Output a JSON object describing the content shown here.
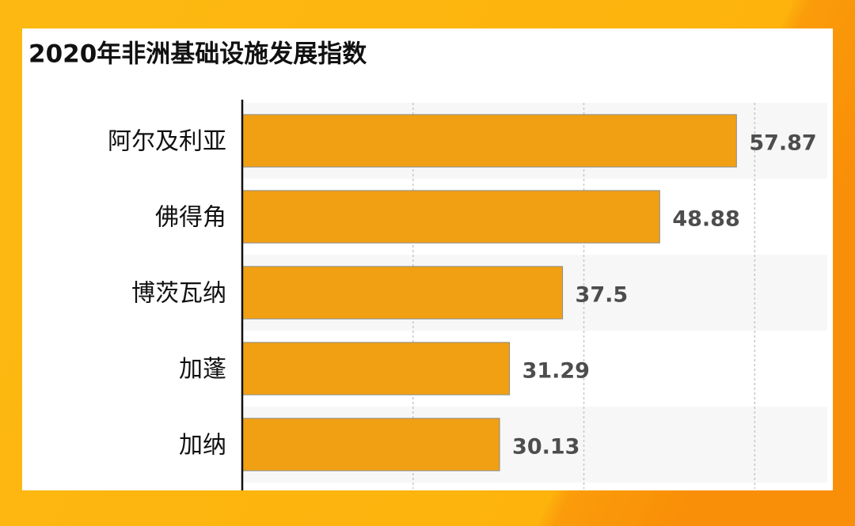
{
  "chart_data": {
    "type": "bar",
    "orientation": "horizontal",
    "title": "2020年非洲基础设施发展指数",
    "categories": [
      "阿尔及利亚",
      "佛得角",
      "博茨瓦纳",
      "加蓬",
      "加纳"
    ],
    "values": [
      57.87,
      48.88,
      37.5,
      31.29,
      30.13
    ],
    "color": "#f0a012",
    "xlim": [
      0,
      68.5
    ],
    "xticks": [
      0,
      20,
      40,
      60
    ],
    "grid": true
  }
}
